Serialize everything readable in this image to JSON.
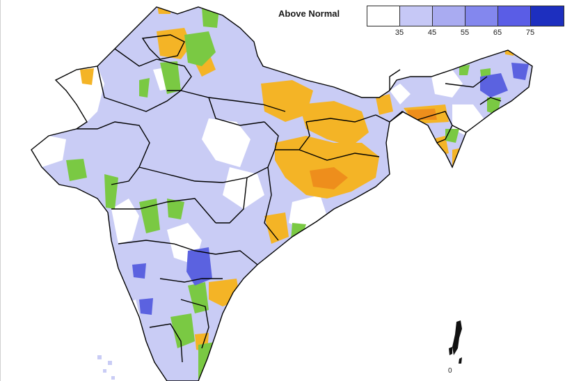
{
  "legend": {
    "title": "Above Normal",
    "colors": [
      "#ffffff",
      "#c6c8f6",
      "#a9abf1",
      "#8387ee",
      "#5a5de6",
      "#1d2fbf"
    ],
    "ticks": [
      "35",
      "45",
      "55",
      "65",
      "75"
    ]
  },
  "map": {
    "land_color": "#c9ccf5",
    "border_color": "#000000",
    "white_patch_color": "#ffffff",
    "orange_color": "#f4b426",
    "dark_orange_color": "#ee8e1c",
    "green_color": "#7ac943",
    "dark_blue_color": "#5b62e0",
    "island_label": "0"
  }
}
